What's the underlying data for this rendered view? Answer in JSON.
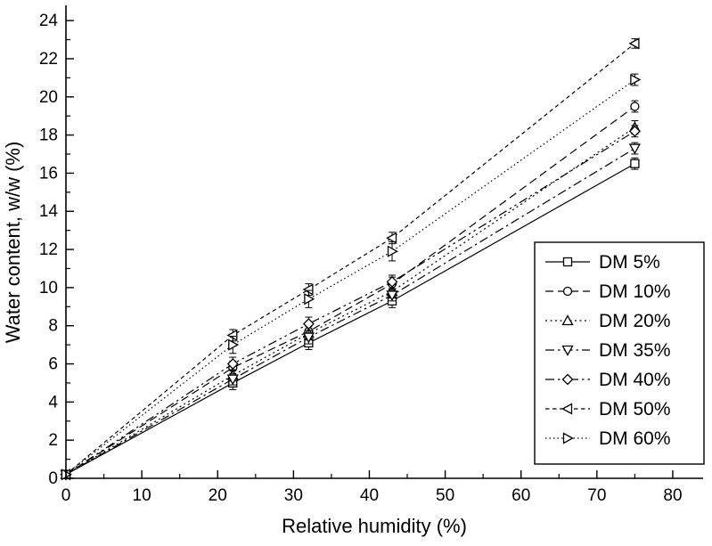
{
  "chart_data": {
    "type": "line",
    "title": "",
    "xlabel": "Relative humidity (%)",
    "ylabel": "Water content, w/w (%)",
    "x": [
      0,
      22,
      32,
      43,
      75
    ],
    "xlim": [
      0,
      84
    ],
    "ylim": [
      0,
      24.8
    ],
    "xticks": [
      0,
      10,
      20,
      30,
      40,
      50,
      60,
      70,
      80
    ],
    "yticks": [
      0,
      2,
      4,
      6,
      8,
      10,
      12,
      14,
      16,
      18,
      20,
      22,
      24
    ],
    "x_minor_step": 5,
    "y_minor_step": 1,
    "grid": false,
    "legend_position": "right-middle",
    "foreground": "#000000",
    "background": "#ffffff",
    "series": [
      {
        "name": "DM 5%",
        "marker": "square",
        "line": "solid",
        "values": [
          0.2,
          5.0,
          7.1,
          9.3,
          16.5
        ],
        "errors": [
          0.05,
          0.35,
          0.35,
          0.35,
          0.3
        ]
      },
      {
        "name": "DM 10%",
        "marker": "circle",
        "line": "dash",
        "values": [
          0.2,
          5.8,
          7.7,
          10.2,
          19.5
        ],
        "errors": [
          0.05,
          0.35,
          0.4,
          0.35,
          0.3
        ]
      },
      {
        "name": "DM 20%",
        "marker": "triangle-up",
        "line": "dot",
        "values": [
          0.2,
          5.4,
          7.6,
          9.8,
          18.4
        ],
        "errors": [
          0.05,
          0.3,
          0.35,
          0.35,
          0.35
        ]
      },
      {
        "name": "DM 35%",
        "marker": "triangle-down",
        "line": "dash-dot",
        "values": [
          0.2,
          5.2,
          7.4,
          9.6,
          17.3
        ],
        "errors": [
          0.05,
          0.3,
          0.35,
          0.3,
          0.3
        ]
      },
      {
        "name": "DM 40%",
        "marker": "diamond",
        "line": "dash-dot-dot",
        "values": [
          0.2,
          6.0,
          8.1,
          10.3,
          18.2
        ],
        "errors": [
          0.05,
          0.35,
          0.35,
          0.35,
          0.3
        ]
      },
      {
        "name": "DM 50%",
        "marker": "triangle-left",
        "line": "short-dash",
        "values": [
          0.2,
          7.5,
          9.9,
          12.6,
          22.8
        ],
        "errors": [
          0.05,
          0.3,
          0.3,
          0.3,
          0.25
        ]
      },
      {
        "name": "DM 60%",
        "marker": "triangle-right",
        "line": "short-dot",
        "values": [
          0.2,
          7.0,
          9.4,
          11.9,
          20.9
        ],
        "errors": [
          0.05,
          0.45,
          0.45,
          0.5,
          0.3
        ]
      }
    ]
  }
}
